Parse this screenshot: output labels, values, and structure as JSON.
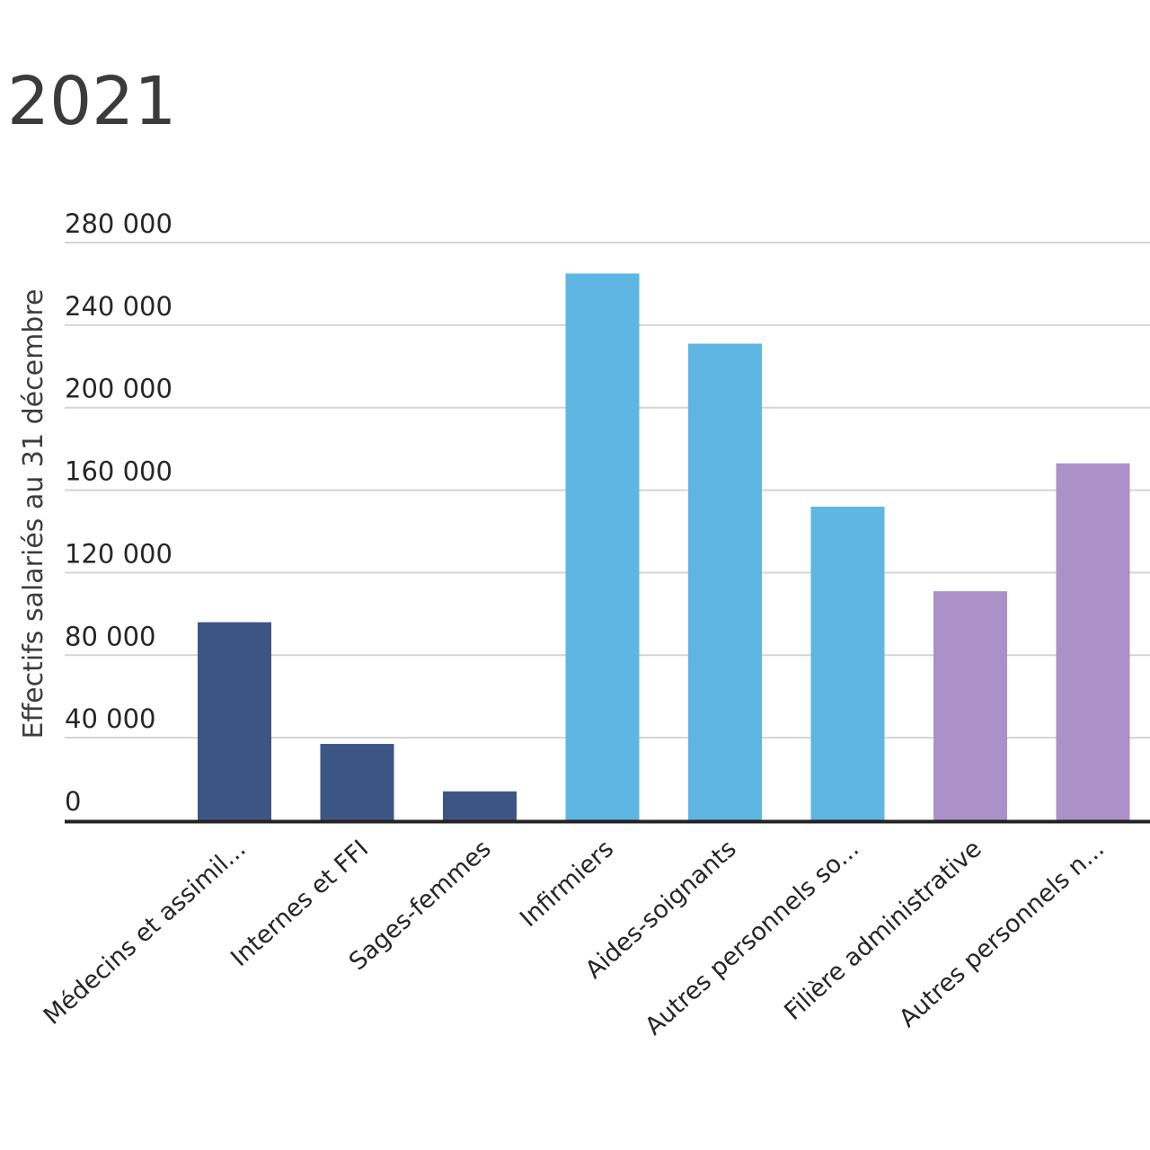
{
  "chart_data": {
    "type": "bar",
    "title": "2021",
    "ylabel": "Effectifs salariés au 31 décembre",
    "xlabel": "",
    "categories": [
      "Médecins et assimil...",
      "Internes et FFI",
      "Sages-femmes",
      "Infirmiers",
      "Aides-soignants",
      "Autres personnels so...",
      "Filière administrative",
      "Autres personnels n..."
    ],
    "values": [
      96000,
      37000,
      14000,
      265000,
      231000,
      152000,
      111000,
      173000
    ],
    "colors": [
      "#3d5585",
      "#3d5585",
      "#3d5585",
      "#5fb6e3",
      "#5fb6e3",
      "#5fb6e3",
      "#ab91c7",
      "#ab91c7"
    ],
    "ylim": [
      0,
      280000
    ],
    "yticks": [
      0,
      40000,
      80000,
      120000,
      160000,
      200000,
      240000,
      280000
    ],
    "ytick_labels": [
      "0",
      "40 000",
      "80 000",
      "120 000",
      "160 000",
      "200 000",
      "240 000",
      "280 000"
    ],
    "grid": true,
    "legend": "none"
  }
}
